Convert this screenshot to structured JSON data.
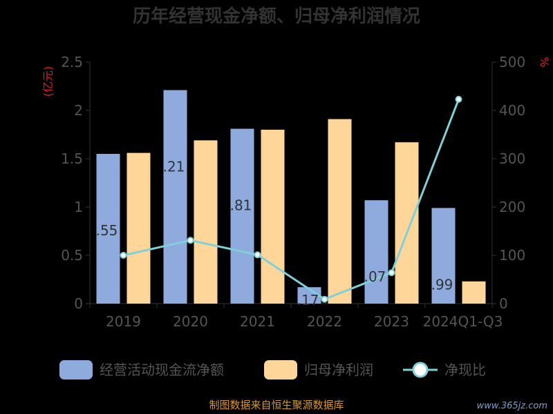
{
  "chart_data": {
    "type": "bar",
    "title": "历年经营现金净额、归母净利润情况",
    "categories": [
      "2019",
      "2020",
      "2021",
      "2022",
      "2023",
      "2024Q1-Q3"
    ],
    "left_axis": {
      "unit": "(亿元)",
      "range": [
        0,
        2.5
      ],
      "ticks": [
        "0",
        "0.5",
        "1",
        "1.5",
        "2",
        "2.5"
      ]
    },
    "right_axis": {
      "unit": "%",
      "range": [
        0,
        500
      ],
      "ticks": [
        "0",
        "100",
        "200",
        "300",
        "400",
        "500"
      ]
    },
    "series": [
      {
        "name": "经营活动现金流净额",
        "type": "bar",
        "axis": "left",
        "color": "#8faadc",
        "values": [
          1.55,
          2.21,
          1.81,
          0.17,
          1.07,
          0.99
        ]
      },
      {
        "name": "归母净利润",
        "type": "bar",
        "axis": "left",
        "color": "#ffd699",
        "values": [
          1.56,
          1.69,
          1.8,
          1.91,
          1.67,
          0.23
        ]
      },
      {
        "name": "净现比",
        "type": "line",
        "axis": "right",
        "color": "#7fd0d8",
        "values": [
          100,
          131,
          101,
          9,
          64,
          423
        ]
      }
    ],
    "data_labels": [
      ".55",
      ".21",
      ".81",
      ".17",
      ".07",
      ".99"
    ],
    "legend_position": "bottom"
  },
  "footer": {
    "source": "制图数据来自恒生聚源数据库",
    "watermark": "www.365jz.com"
  }
}
